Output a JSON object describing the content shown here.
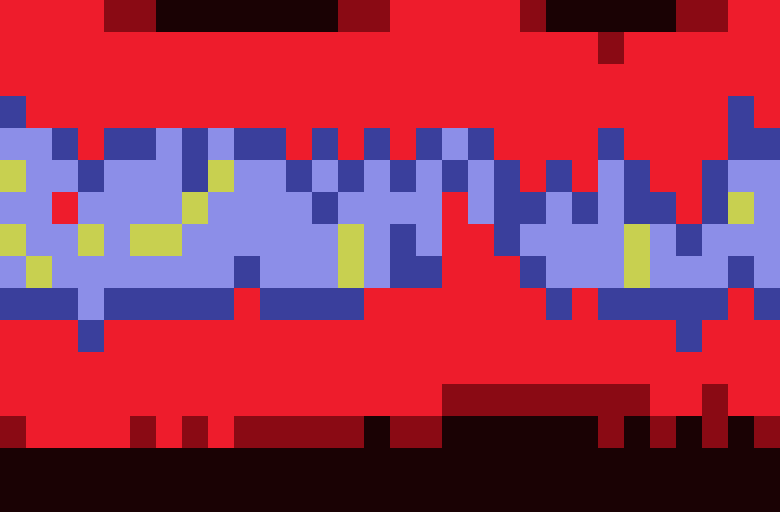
{
  "chart_data": {
    "type": "heatmap",
    "xlim": [
      0,
      30
    ],
    "ylim": [
      0,
      16
    ],
    "tick_labels": false,
    "zlim": [
      0,
      5
    ],
    "cells": [
      [
        2,
        2,
        2,
        2,
        1,
        1,
        0,
        0,
        0,
        0,
        0,
        0,
        0,
        1,
        1,
        2,
        2,
        2,
        2,
        2,
        1,
        0,
        0,
        0,
        0,
        0,
        1,
        1,
        2,
        2
      ],
      [
        2,
        2,
        2,
        2,
        2,
        2,
        2,
        2,
        2,
        2,
        2,
        2,
        2,
        2,
        2,
        2,
        2,
        2,
        2,
        2,
        2,
        2,
        2,
        1,
        2,
        2,
        2,
        2,
        2,
        2
      ],
      [
        2,
        2,
        2,
        2,
        2,
        2,
        2,
        2,
        2,
        2,
        2,
        2,
        2,
        2,
        2,
        2,
        2,
        2,
        2,
        2,
        2,
        2,
        2,
        2,
        2,
        2,
        2,
        2,
        2,
        2
      ],
      [
        3,
        2,
        2,
        2,
        2,
        2,
        2,
        2,
        2,
        2,
        2,
        2,
        2,
        2,
        2,
        2,
        2,
        2,
        2,
        2,
        2,
        2,
        2,
        2,
        2,
        2,
        2,
        2,
        3,
        2
      ],
      [
        4,
        4,
        3,
        2,
        3,
        3,
        4,
        3,
        4,
        3,
        3,
        2,
        3,
        2,
        3,
        2,
        3,
        4,
        3,
        2,
        2,
        2,
        2,
        3,
        2,
        2,
        2,
        2,
        3,
        3
      ],
      [
        5,
        4,
        4,
        3,
        4,
        4,
        4,
        3,
        5,
        4,
        4,
        3,
        4,
        3,
        4,
        3,
        4,
        3,
        4,
        3,
        2,
        3,
        2,
        4,
        3,
        2,
        2,
        3,
        4,
        4
      ],
      [
        4,
        4,
        2,
        4,
        4,
        4,
        4,
        5,
        4,
        4,
        4,
        4,
        3,
        4,
        4,
        4,
        4,
        2,
        4,
        3,
        3,
        4,
        3,
        4,
        3,
        3,
        2,
        3,
        5,
        4
      ],
      [
        5,
        4,
        4,
        5,
        4,
        5,
        5,
        4,
        4,
        4,
        4,
        4,
        4,
        5,
        4,
        3,
        4,
        2,
        2,
        3,
        4,
        4,
        4,
        4,
        5,
        4,
        3,
        4,
        4,
        4
      ],
      [
        4,
        5,
        4,
        4,
        4,
        4,
        4,
        4,
        4,
        3,
        4,
        4,
        4,
        5,
        4,
        3,
        3,
        2,
        2,
        2,
        3,
        4,
        4,
        4,
        5,
        4,
        4,
        4,
        3,
        4
      ],
      [
        3,
        3,
        3,
        4,
        3,
        3,
        3,
        3,
        3,
        2,
        3,
        3,
        3,
        3,
        2,
        2,
        2,
        2,
        2,
        2,
        2,
        3,
        2,
        3,
        3,
        3,
        3,
        3,
        2,
        3
      ],
      [
        2,
        2,
        2,
        3,
        2,
        2,
        2,
        2,
        2,
        2,
        2,
        2,
        2,
        2,
        2,
        2,
        2,
        2,
        2,
        2,
        2,
        2,
        2,
        2,
        2,
        2,
        3,
        2,
        2,
        2
      ],
      [
        2,
        2,
        2,
        2,
        2,
        2,
        2,
        2,
        2,
        2,
        2,
        2,
        2,
        2,
        2,
        2,
        2,
        2,
        2,
        2,
        2,
        2,
        2,
        2,
        2,
        2,
        2,
        2,
        2,
        2
      ],
      [
        2,
        2,
        2,
        2,
        2,
        2,
        2,
        2,
        2,
        2,
        2,
        2,
        2,
        2,
        2,
        2,
        2,
        1,
        1,
        1,
        1,
        1,
        1,
        1,
        1,
        2,
        2,
        1,
        2,
        2
      ],
      [
        1,
        2,
        2,
        2,
        2,
        1,
        2,
        1,
        2,
        1,
        1,
        1,
        1,
        1,
        0,
        1,
        1,
        0,
        0,
        0,
        0,
        0,
        0,
        1,
        0,
        1,
        0,
        1,
        0,
        1
      ],
      [
        0,
        0,
        0,
        0,
        0,
        0,
        0,
        0,
        0,
        0,
        0,
        0,
        0,
        0,
        0,
        0,
        0,
        0,
        0,
        0,
        0,
        0,
        0,
        0,
        0,
        0,
        0,
        0,
        0,
        0
      ],
      [
        0,
        0,
        0,
        0,
        0,
        0,
        0,
        0,
        0,
        0,
        0,
        0,
        0,
        0,
        0,
        0,
        0,
        0,
        0,
        0,
        0,
        0,
        0,
        0,
        0,
        0,
        0,
        0,
        0,
        0
      ]
    ]
  }
}
